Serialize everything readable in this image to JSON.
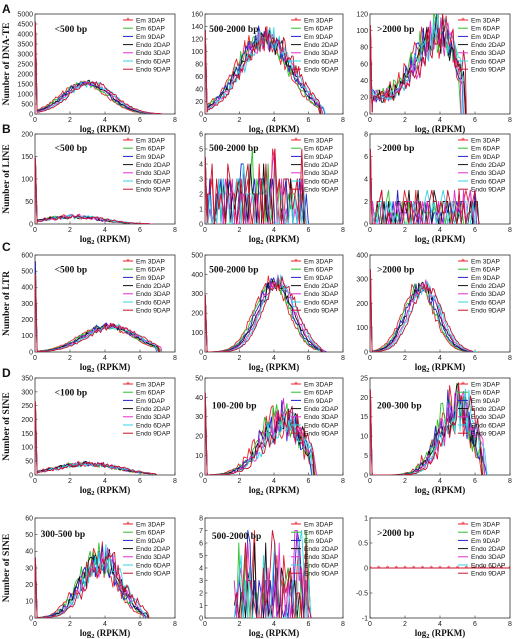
{
  "figure": {
    "panel_letters": [
      "A",
      "B",
      "C",
      "D"
    ],
    "series_names": [
      "Em 3DAP",
      "Em 6DAP",
      "Em 9DAP",
      "Endo 2DAP",
      "Endo 3DAP",
      "Endo 6DAP",
      "Endo 9DAP"
    ],
    "series_colors": [
      "#e8222b",
      "#2fbf2f",
      "#2222cc",
      "#111111",
      "#e02fd0",
      "#2fd6e6",
      "#c8102e"
    ]
  },
  "chart_data": [
    {
      "id": "A1",
      "type": "line",
      "row": "A",
      "annotation": "<500 bp",
      "ylabel": "Number of DNA-TE",
      "xlabel": "log2 (RPKM)",
      "xlim": [
        0,
        8
      ],
      "ylim": [
        0,
        5000
      ],
      "yticks": [
        0,
        500,
        1000,
        1500,
        2000,
        2500,
        3000,
        3500,
        4000,
        4500,
        5000
      ],
      "xticks": [
        0,
        2,
        4,
        6,
        8
      ],
      "spike": 4800,
      "shape": "bell",
      "peak_x": 3.0,
      "peak_y": 1550,
      "spread": 1.3,
      "xmax": 7.2,
      "noise": 0.06
    },
    {
      "id": "A2",
      "type": "line",
      "row": "A",
      "annotation": "500-2000 bp",
      "xlabel": "log2 (RPKM)",
      "xlim": [
        0,
        8
      ],
      "ylim": [
        0,
        160
      ],
      "yticks": [
        0,
        20,
        40,
        60,
        80,
        100,
        120,
        140,
        160
      ],
      "xticks": [
        0,
        2,
        4,
        6,
        8
      ],
      "spike": 155,
      "shape": "bell",
      "peak_x": 3.5,
      "peak_y": 122,
      "spread": 1.5,
      "xmax": 6.8,
      "noise": 0.12
    },
    {
      "id": "A3",
      "type": "line",
      "row": "A",
      "annotation": ">2000 bp",
      "xlabel": "log2 (RPKM)",
      "xlim": [
        0,
        8
      ],
      "ylim": [
        0,
        120
      ],
      "yticks": [
        0,
        20,
        40,
        60,
        80,
        100,
        120
      ],
      "xticks": [
        0,
        2,
        4,
        6,
        8
      ],
      "spike": 115,
      "shape": "bell",
      "peak_x": 3.8,
      "peak_y": 78,
      "spread": 1.1,
      "base": 22,
      "xmax": 5.3,
      "noise": 0.25
    },
    {
      "id": "B1",
      "type": "line",
      "row": "B",
      "annotation": "<500 bp",
      "ylabel": "Number of LINE",
      "xlabel": "log2 (RPKM)",
      "xlim": [
        0,
        8
      ],
      "ylim": [
        0,
        200
      ],
      "yticks": [
        0,
        50,
        100,
        150,
        200
      ],
      "xticks": [
        0,
        2,
        4,
        6,
        8
      ],
      "spike": 150,
      "shape": "bell",
      "peak_x": 2.2,
      "peak_y": 16,
      "spread": 1.6,
      "xmax": 6.5,
      "noise": 0.3
    },
    {
      "id": "B2",
      "type": "line",
      "row": "B",
      "annotation": "500-2000 bp",
      "xlabel": "log2 (RPKM)",
      "xlim": [
        0,
        8
      ],
      "ylim": [
        0,
        6
      ],
      "yticks": [
        0,
        1,
        2,
        3,
        4,
        5,
        6
      ],
      "xticks": [
        0,
        2,
        4,
        6,
        8
      ],
      "spike": 5,
      "shape": "discrete",
      "xmax": 5.8,
      "levels": 5
    },
    {
      "id": "B3",
      "type": "line",
      "row": "B",
      "annotation": ">2000 bp",
      "xlabel": "log2 (RPKM)",
      "xlim": [
        0,
        8
      ],
      "ylim": [
        0,
        8
      ],
      "yticks": [
        0,
        2,
        4,
        6,
        8
      ],
      "xticks": [
        0,
        2,
        4,
        6,
        8
      ],
      "spike": 7,
      "shape": "discrete",
      "xmax": 6.0,
      "levels": 3
    },
    {
      "id": "C1",
      "type": "line",
      "row": "C",
      "annotation": "<500 bp",
      "ylabel": "Number of LTR",
      "xlabel": "log2 (RPKM)",
      "xlim": [
        0,
        8
      ],
      "ylim": [
        0,
        600
      ],
      "yticks": [
        0,
        100,
        200,
        300,
        400,
        500,
        600
      ],
      "xticks": [
        0,
        2,
        4,
        6,
        8
      ],
      "spike": 560,
      "shape": "bell",
      "peak_x": 4.3,
      "peak_y": 160,
      "spread": 1.5,
      "xmax": 7.0,
      "noise": 0.08
    },
    {
      "id": "C2",
      "type": "line",
      "row": "C",
      "annotation": "500-2000 bp",
      "xlabel": "log2 (RPKM)",
      "xlim": [
        0,
        8
      ],
      "ylim": [
        0,
        500
      ],
      "yticks": [
        0,
        100,
        200,
        300,
        400,
        500
      ],
      "xticks": [
        0,
        2,
        4,
        6,
        8
      ],
      "spike": 320,
      "shape": "bell",
      "peak_x": 4.1,
      "peak_y": 360,
      "spread": 1.0,
      "xmax": 6.8,
      "noise": 0.06
    },
    {
      "id": "C3",
      "type": "line",
      "row": "C",
      "annotation": ">2000 bp",
      "xlabel": "log2 (RPKM)",
      "xlim": [
        0,
        8
      ],
      "ylim": [
        0,
        400
      ],
      "yticks": [
        0,
        100,
        200,
        300,
        400
      ],
      "xticks": [
        0,
        2,
        4,
        6,
        8
      ],
      "spike": 350,
      "shape": "bell",
      "peak_x": 3.0,
      "peak_y": 270,
      "spread": 0.9,
      "xmax": 6.0,
      "noise": 0.07
    },
    {
      "id": "D1",
      "type": "line",
      "row": "D",
      "annotation": "<100 bp",
      "ylabel": "Number of SINE",
      "xlabel": "log2 (RPKM)",
      "xlim": [
        0,
        8
      ],
      "ylim": [
        0,
        350
      ],
      "yticks": [
        0,
        50,
        100,
        150,
        200,
        250,
        300,
        350
      ],
      "xticks": [
        0,
        2,
        4,
        6,
        8
      ],
      "spike": 300,
      "shape": "bell",
      "peak_x": 3.0,
      "peak_y": 40,
      "spread": 1.8,
      "xmax": 6.8,
      "noise": 0.2
    },
    {
      "id": "D2",
      "type": "line",
      "row": "D",
      "annotation": "100-200 bp",
      "xlabel": "log2 (RPKM)",
      "xlim": [
        0,
        8
      ],
      "ylim": [
        0,
        50
      ],
      "yticks": [
        0,
        10,
        20,
        30,
        40,
        50
      ],
      "xticks": [
        0,
        2,
        4,
        6,
        8
      ],
      "spike": 45,
      "shape": "bell",
      "peak_x": 4.5,
      "peak_y": 28,
      "spread": 1.2,
      "xmax": 6.3,
      "noise": 0.35
    },
    {
      "id": "D3",
      "type": "line",
      "row": "D",
      "annotation": "200-300 bp",
      "xlabel": "log2 (RPKM)",
      "xlim": [
        0,
        8
      ],
      "ylim": [
        0,
        25
      ],
      "yticks": [
        0,
        5,
        10,
        15,
        20,
        25
      ],
      "xticks": [
        0,
        2,
        4,
        6,
        8
      ],
      "spike": 22,
      "shape": "bell",
      "peak_x": 5.0,
      "peak_y": 17,
      "spread": 1.0,
      "xmax": 6.5,
      "noise": 0.4
    },
    {
      "id": "D4",
      "type": "line",
      "row": "D",
      "annotation": "300-500 bp",
      "ylabel": "Number of SINE",
      "xlabel": "log2 (RPKM)",
      "xlim": [
        0,
        8
      ],
      "ylim": [
        0,
        60
      ],
      "yticks": [
        0,
        10,
        20,
        30,
        40,
        50,
        60
      ],
      "xticks": [
        0,
        2,
        4,
        6,
        8
      ],
      "spike": 40,
      "shape": "bell",
      "peak_x": 3.8,
      "peak_y": 35,
      "spread": 1.1,
      "xmax": 6.3,
      "noise": 0.3
    },
    {
      "id": "D5",
      "type": "line",
      "row": "D",
      "annotation": "500-2000 bp",
      "xlabel": "log2 (RPKM)",
      "xlim": [
        0,
        8
      ],
      "ylim": [
        0,
        8
      ],
      "yticks": [
        0,
        1,
        2,
        3,
        4,
        5,
        6,
        7,
        8
      ],
      "xticks": [
        0,
        2,
        4,
        6,
        8
      ],
      "spike": 0,
      "shape": "discrete",
      "xmin": 1.7,
      "xmax": 6.0,
      "levels": 7
    },
    {
      "id": "D6",
      "type": "line",
      "row": "D",
      "annotation": ">2000 bp",
      "xlabel": "log2 (RPKM)",
      "xlim": [
        0,
        8
      ],
      "ylim": [
        -1,
        1
      ],
      "yticks": [
        -1,
        -0.5,
        0,
        0.5,
        1
      ],
      "xticks": [
        0,
        2,
        4,
        6,
        8
      ],
      "spike": 0,
      "shape": "flat",
      "xmax": 8
    }
  ]
}
